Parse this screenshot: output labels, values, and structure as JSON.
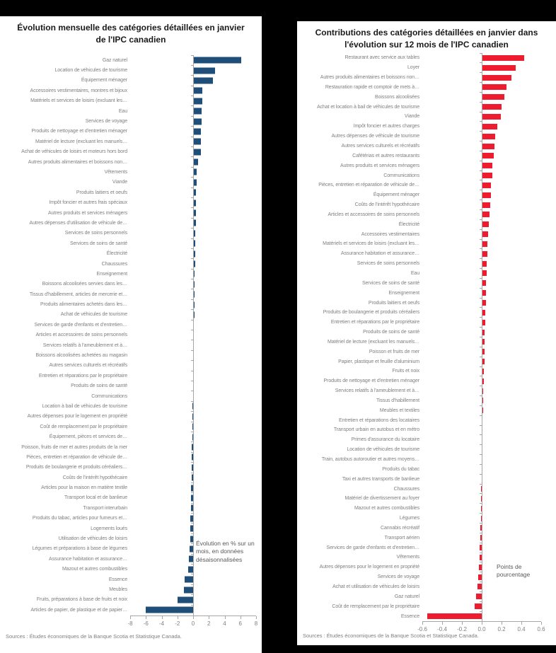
{
  "page": {
    "background": "#000000",
    "panel_background": "#ffffff"
  },
  "chart_data": [
    {
      "type": "bar",
      "orientation": "horizontal",
      "title": "Évolution mensuelle des catégories détaillées en janvier de l'IPC canadien",
      "annotation": "Évolution en % sur un mois, en données désaisonnalisées",
      "source": "Sources : Études économiques de la Banque Scotia et Statistique Canada.",
      "bar_color": "#1f4e79",
      "axis_color": "#a6a6a6",
      "xlim": [
        -8,
        8
      ],
      "xtick_labels": [
        "-8",
        "-6",
        "-4",
        "-2",
        "0",
        "2",
        "4",
        "6",
        "8"
      ],
      "xtick_values": [
        -8,
        -6,
        -4,
        -2,
        0,
        2,
        4,
        6,
        8
      ],
      "categories": [
        "Gaz naturel",
        "Location de véhicules de tourisme",
        "Équipement ménager",
        "Accessoires vestimentaires, montres et bijoux",
        "Matériels et services de loisirs (excluant les…",
        "Eau",
        "Services de voyage",
        "Produits de nettoyage et d'entretien ménager",
        "Matériel de lecture (excluant les manuels…",
        "Achat de véhicules de loisirs et moteurs hors bord",
        "Autres produits alimentaires et boissons non…",
        "Vêtements",
        "Viande",
        "Produits laitiers et oeufs",
        "Impôt foncier et autres frais spéciaux",
        "Autres produits et services ménagers",
        "Autres dépenses d'utilisation de véhicule de…",
        "Services de soins personnels",
        "Services de soins de santé",
        "Électricité",
        "Chaussures",
        "Enseignement",
        "Boissons alcoolisées servies dans les…",
        "Tissus d'habillement, articles de mercerie et…",
        "Produits alimentaires achetés dans les…",
        "Achat de véhicules de tourisme",
        "Services de garde d'enfants et d'entretien…",
        "Articles et accessoires de soins personnels",
        "Services relatifs à l'ameublement et à…",
        "Boissons alcoolisées achetées au magasin",
        "Autres services culturels et récréatifs",
        "Entretien et réparations par le propriétaire",
        "Produits de soins de santé",
        "Communications",
        "Location à bail de véhicules de tourisme",
        "Autres dépenses pour le logement en propriété",
        "Coût de remplacement par le propriétaire",
        "Équipement, pièces et services de…",
        "Poisson, fruits de mer et autres produits de la mer",
        "Pièces, entretien et réparation de véhicule de…",
        "Produits de boulangerie et produits céréaliers…",
        "Coûts de l'intérêt hypothécaire",
        "Articles pour la maison en matière textile",
        "Transport local et de banlieue",
        "Transport interurbain",
        "Produits du tabac, articles pour fumeurs et…",
        "Logements loués",
        "Utilisation de véhicules de loisirs",
        "Légumes et préparations à base de légumes",
        "Assurance habitation et assurance…",
        "Mazout et autres combustibles",
        "Essence",
        "Meubles",
        "Fruits, préparations à base de fruits et noix",
        "Articles de papier, de plastique et de papier…"
      ],
      "values": [
        6.1,
        2.75,
        2.5,
        1.2,
        1.15,
        1.1,
        1.05,
        1.0,
        0.95,
        0.95,
        0.6,
        0.45,
        0.42,
        0.4,
        0.38,
        0.35,
        0.32,
        0.3,
        0.28,
        0.26,
        0.24,
        0.22,
        0.2,
        0.18,
        0.16,
        0.14,
        0.12,
        0.1,
        0.08,
        0.06,
        0.05,
        0.04,
        0.02,
        -0.04,
        -0.06,
        -0.09,
        -0.11,
        -0.13,
        -0.16,
        -0.18,
        -0.2,
        -0.22,
        -0.25,
        -0.28,
        -0.3,
        -0.33,
        -0.36,
        -0.4,
        -0.45,
        -0.5,
        -0.6,
        -1.1,
        -1.2,
        -2.0,
        -6.0
      ]
    },
    {
      "type": "bar",
      "orientation": "horizontal",
      "title": "Contributions des catégories détaillées en janvier dans l'évolution sur 12 mois de l'IPC canadien",
      "annotation": "Points de pourcentage",
      "source": "Sources : Études économiques de la Banque Scotia et Statistique Canada.",
      "bar_color": "#ed1c2e",
      "axis_color": "#a6a6a6",
      "xlim": [
        -0.6,
        0.6
      ],
      "xtick_labels": [
        "-0.6",
        "-0.4",
        "-0.2",
        "0.0",
        "0.2",
        "0.4",
        "0.6"
      ],
      "xtick_values": [
        -0.6,
        -0.4,
        -0.2,
        0,
        0.2,
        0.4,
        0.6
      ],
      "categories": [
        "Restaurant avec service aux tables",
        "Loyer",
        "Autres produits alimentaires et boissons non…",
        "Restauration rapide et comptoir de mets à…",
        "Boissons alcoolisées",
        "Achat et location à bail de véhicules de tourisme",
        "Viande",
        "Impôt foncier et autres charges",
        "Autres dépenses de véhicule de tourisme",
        "Autres services culturels et récréatifs",
        "Cafétérias et autres restaurants",
        "Autres produits et services ménagers",
        "Communications",
        "Pièces, entretien et réparation de véhicule de…",
        "Équipement ménager",
        "Coûts de l'intérêt hypothécaire",
        "Articles et accessoires de soins personnels",
        "Électricité",
        "Accessoires vestimentaires",
        "Matériels et services de loisirs (excluant les…",
        "Assurance habitation et assurance…",
        "Services de soins personnels",
        "Eau",
        "Services de soins de santé",
        "Enseignement",
        "Produits laitiers et oeufs",
        "Produits de boulangerie et produits céréaliers",
        "Entretien et réparations par le propriétaire",
        "Produits de soins de santé",
        "Matériel de lecture (excluant les manuels…",
        "Poisson et fruits de mer",
        "Papier, plastique et feuille d'aluminium",
        "Fruits et noix",
        "Produits de nettoyage et d'entretien ménager",
        "Services relatifs à l'ameublement et à…",
        "Tissus d'habillement",
        "Meubles et textiles",
        "Entretien et réparations des locataires",
        "Transport urbain en autobus et en métro",
        "Primes d'assurance du locataire",
        "Location de véhicules de tourisme",
        "Train, autobus autoroutier et autres moyens…",
        "Produits du tabac",
        "Taxi et autres transports de banlieue",
        "Chaussures",
        "Matériel de divertissement au foyer",
        "Mazout et autres combustibles",
        "Légumes",
        "Cannabis récréatif",
        "Transport aérien",
        "Services de garde d'enfants et d'entretien…",
        "Vêtements",
        "Autres dépenses pour le logement en propriété",
        "Services de voyage",
        "Achat et utilisation de véhicules de loisirs",
        "Gaz naturel",
        "Coût de remplacement par le propriétaire",
        "Essence"
      ],
      "values": [
        0.43,
        0.34,
        0.3,
        0.25,
        0.23,
        0.2,
        0.19,
        0.16,
        0.135,
        0.125,
        0.12,
        0.11,
        0.105,
        0.095,
        0.09,
        0.085,
        0.075,
        0.07,
        0.065,
        0.06,
        0.055,
        0.05,
        0.05,
        0.045,
        0.04,
        0.04,
        0.035,
        0.035,
        0.03,
        0.03,
        0.025,
        0.025,
        0.02,
        0.02,
        0.015,
        0.015,
        0.012,
        0.01,
        0.01,
        0.008,
        0.006,
        0.005,
        0.003,
        -0.003,
        -0.005,
        -0.006,
        -0.008,
        -0.01,
        -0.012,
        -0.015,
        -0.02,
        -0.022,
        -0.03,
        -0.035,
        -0.045,
        -0.06,
        -0.07,
        -0.55
      ]
    }
  ]
}
